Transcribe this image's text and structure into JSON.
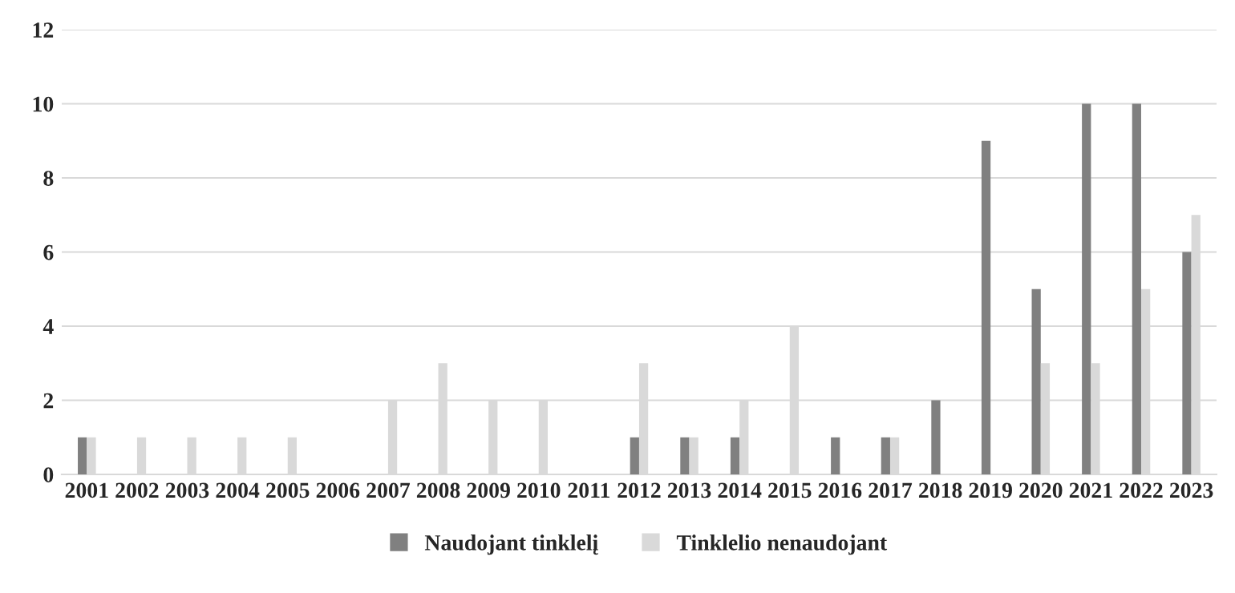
{
  "chart_data": {
    "type": "bar",
    "categories": [
      "2001",
      "2002",
      "2003",
      "2004",
      "2005",
      "2006",
      "2007",
      "2008",
      "2009",
      "2010",
      "2011",
      "2012",
      "2013",
      "2014",
      "2015",
      "2016",
      "2017",
      "2018",
      "2019",
      "2020",
      "2021",
      "2022",
      "2023"
    ],
    "series": [
      {
        "name": "Naudojant tinklelį",
        "color": "#808080",
        "values": [
          1,
          0,
          0,
          0,
          0,
          0,
          0,
          0,
          0,
          0,
          0,
          1,
          1,
          1,
          0,
          1,
          1,
          2,
          9,
          5,
          10,
          10,
          6
        ]
      },
      {
        "name": "Tinklelio nenaudojant",
        "color": "#d9d9d9",
        "values": [
          1,
          1,
          1,
          1,
          1,
          0,
          2,
          3,
          2,
          2,
          0,
          3,
          1,
          2,
          4,
          0,
          1,
          0,
          0,
          3,
          3,
          5,
          7
        ]
      }
    ],
    "ylim": [
      0,
      12
    ],
    "yticks": [
      0,
      2,
      4,
      6,
      8,
      10,
      12
    ],
    "grid": "y",
    "legend": "bottom"
  }
}
